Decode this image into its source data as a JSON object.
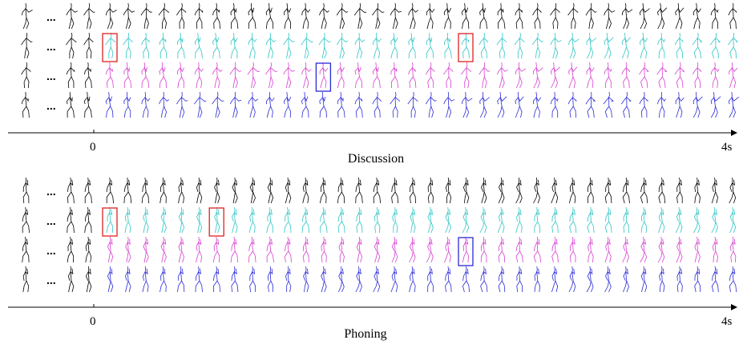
{
  "panels": [
    {
      "title": "Discussion",
      "axis": {
        "start_label": "0",
        "end_label": "4s"
      },
      "ellipsis": "...",
      "rows": [
        {
          "color": "#000000",
          "frames": 36
        },
        {
          "color": "#2ec4c4",
          "frames": 36
        },
        {
          "color": "#d63fd0",
          "frames": 36
        },
        {
          "color": "#2a2ad6",
          "frames": 36
        }
      ],
      "highlights": [
        {
          "row": 1,
          "frame": 0,
          "color": "#e02020"
        },
        {
          "row": 1,
          "frame": 20,
          "color": "#e02020"
        },
        {
          "row": 2,
          "frame": 12,
          "color": "#2a2ad6"
        }
      ]
    },
    {
      "title": "Phoning",
      "axis": {
        "start_label": "0",
        "end_label": "4s"
      },
      "ellipsis": "...",
      "rows": [
        {
          "color": "#000000",
          "frames": 36
        },
        {
          "color": "#2ec4c4",
          "frames": 36
        },
        {
          "color": "#d63fd0",
          "frames": 36
        },
        {
          "color": "#2a2ad6",
          "frames": 36
        }
      ],
      "highlights": [
        {
          "row": 1,
          "frame": 0,
          "color": "#e02020"
        },
        {
          "row": 1,
          "frame": 6,
          "color": "#e02020"
        },
        {
          "row": 2,
          "frame": 20,
          "color": "#2a2ad6"
        }
      ]
    }
  ]
}
